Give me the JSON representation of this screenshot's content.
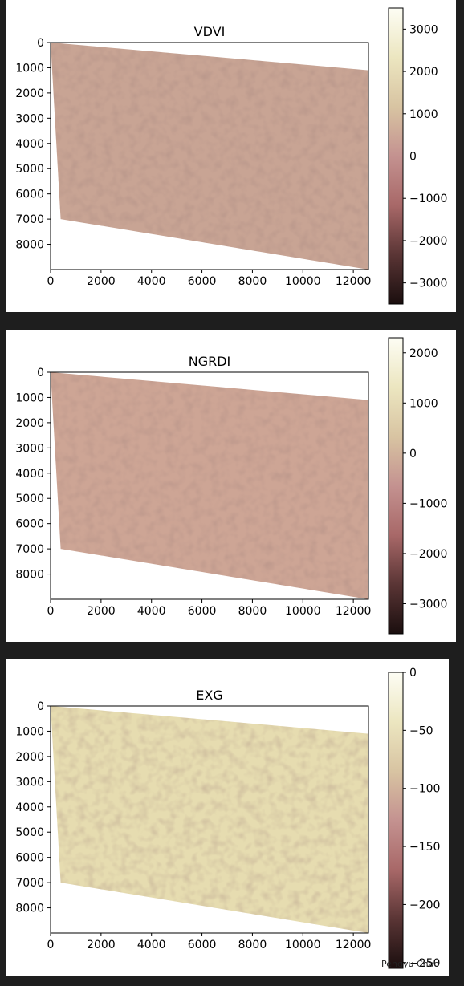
{
  "chart_data": [
    {
      "type": "heatmap",
      "title": "VDVI",
      "xlabel": "",
      "ylabel": "",
      "xlim": [
        0,
        12600
      ],
      "ylim": [
        9000,
        0
      ],
      "x_ticks": [
        0,
        2000,
        4000,
        6000,
        8000,
        10000,
        12000
      ],
      "y_ticks": [
        0,
        1000,
        2000,
        3000,
        4000,
        5000,
        6000,
        7000,
        8000
      ],
      "footprint": [
        [
          0,
          0
        ],
        [
          12600,
          1100
        ],
        [
          12600,
          9000
        ],
        [
          400,
          7000
        ]
      ],
      "colorbar": {
        "range": [
          -3500,
          3500
        ],
        "ticks": [
          3000,
          2000,
          1000,
          0,
          -1000,
          -2000,
          -3000
        ],
        "colors": [
          "#1a0e0e",
          "#5a3535",
          "#a86868",
          "#c49290",
          "#d8c4a2",
          "#ece6c0",
          "#fdfdf4"
        ]
      },
      "dominant_color": "#c8a494",
      "grid": false
    },
    {
      "type": "heatmap",
      "title": "NGRDI",
      "xlabel": "",
      "ylabel": "",
      "xlim": [
        0,
        12600
      ],
      "ylim": [
        9000,
        0
      ],
      "x_ticks": [
        0,
        2000,
        4000,
        6000,
        8000,
        10000,
        12000
      ],
      "y_ticks": [
        0,
        1000,
        2000,
        3000,
        4000,
        5000,
        6000,
        7000,
        8000
      ],
      "footprint": [
        [
          0,
          0
        ],
        [
          12600,
          1100
        ],
        [
          12600,
          9000
        ],
        [
          400,
          7000
        ]
      ],
      "colorbar": {
        "range": [
          -3600,
          2300
        ],
        "ticks": [
          2000,
          1000,
          0,
          -1000,
          -2000,
          -3000
        ],
        "colors": [
          "#1a0e0e",
          "#5a3535",
          "#a86868",
          "#c49290",
          "#d8c4a2",
          "#ece6c0",
          "#fdfdf4"
        ]
      },
      "dominant_color": "#cda595",
      "grid": false
    },
    {
      "type": "heatmap",
      "title": "EXG",
      "xlabel": "",
      "ylabel": "",
      "xlim": [
        0,
        12600
      ],
      "ylim": [
        9000,
        0
      ],
      "x_ticks": [
        0,
        2000,
        4000,
        6000,
        8000,
        10000,
        12000
      ],
      "y_ticks": [
        0,
        1000,
        2000,
        3000,
        4000,
        5000,
        6000,
        7000,
        8000
      ],
      "footprint": [
        [
          0,
          0
        ],
        [
          12600,
          1100
        ],
        [
          12600,
          9000
        ],
        [
          400,
          7000
        ]
      ],
      "colorbar": {
        "range": [
          -255,
          0
        ],
        "ticks": [
          0,
          -50,
          -100,
          -150,
          -200,
          -250
        ],
        "colors": [
          "#1a0e0e",
          "#5a3535",
          "#a86868",
          "#c49290",
          "#d8c4a2",
          "#ece6c0",
          "#fdfdf4"
        ]
      },
      "dominant_color": "#e6dcb0",
      "grid": false
    }
  ],
  "footer_note": "Pengyu Chao"
}
